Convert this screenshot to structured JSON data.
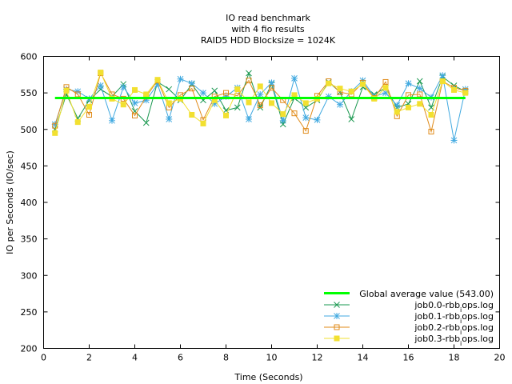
{
  "chart_data": {
    "type": "line",
    "title_lines": [
      "IO read benchmark",
      "with 4 fio results",
      "RAID5 HDD  Blocksize = 1024K"
    ],
    "xlabel": "Time (Seconds)",
    "ylabel": "IO per Seconds (IO/sec)",
    "xlim": [
      0,
      20
    ],
    "ylim": [
      200,
      600
    ],
    "xticks": [
      "0",
      "2",
      "4",
      "6",
      "8",
      "10",
      "12",
      "14",
      "16",
      "18",
      "20"
    ],
    "yticks": [
      "200",
      "250",
      "300",
      "350",
      "400",
      "450",
      "500",
      "550",
      "600"
    ],
    "grid": false,
    "legend_position": "bottom-right",
    "average_line": {
      "label": "Global average value (543.00)",
      "value": 543,
      "x": [
        0.5,
        18.5
      ],
      "color": "#00ff00"
    },
    "series": [
      {
        "name": "job0.0-rbb̧ops.log",
        "legend_label": "job0.0-rbb",
        "legend_sub": "i",
        "legend_tail": "ops.log",
        "color": "#1a9850",
        "marker": "x",
        "x": [
          0.5,
          1.0,
          1.5,
          2.0,
          2.5,
          3.0,
          3.5,
          4.0,
          4.5,
          5.0,
          5.5,
          6.0,
          6.5,
          7.0,
          7.5,
          8.0,
          8.5,
          9.0,
          9.5,
          10.0,
          10.5,
          11.0,
          11.5,
          12.0,
          12.5,
          13.0,
          13.5,
          14.0,
          14.5,
          15.0,
          15.5,
          16.0,
          16.5,
          17.0,
          17.5,
          18.0,
          18.5
        ],
        "y": [
          500,
          548,
          515,
          540,
          555,
          545,
          562,
          525,
          509,
          565,
          555,
          540,
          562,
          540,
          553,
          526,
          530,
          577,
          530,
          562,
          507,
          543,
          530,
          540,
          565,
          551,
          514,
          558,
          548,
          557,
          530,
          535,
          566,
          530,
          572,
          560,
          552
        ]
      },
      {
        "name": "job0.1-rbb̧ops.log",
        "legend_label": "job0.1-rbb",
        "legend_sub": "i",
        "legend_tail": "ops.log",
        "color": "#41a9e0",
        "marker": "asterisk",
        "x": [
          0.5,
          1.0,
          1.5,
          2.0,
          2.5,
          3.0,
          3.5,
          4.0,
          4.5,
          5.0,
          5.5,
          6.0,
          6.5,
          7.0,
          7.5,
          8.0,
          8.5,
          9.0,
          9.5,
          10.0,
          10.5,
          11.0,
          11.5,
          12.0,
          12.5,
          13.0,
          13.5,
          14.0,
          14.5,
          15.0,
          15.5,
          16.0,
          16.5,
          17.0,
          17.5,
          18.0,
          18.5
        ],
        "y": [
          507,
          555,
          552,
          542,
          560,
          512,
          558,
          536,
          540,
          562,
          514,
          569,
          563,
          550,
          535,
          545,
          557,
          514,
          548,
          564,
          512,
          570,
          516,
          513,
          545,
          534,
          552,
          567,
          545,
          550,
          533,
          563,
          556,
          544,
          574,
          485,
          555
        ]
      },
      {
        "name": "job0.2-rbb̧ops.log",
        "legend_label": "job0.2-rbb",
        "legend_sub": "i",
        "legend_tail": "ops.log",
        "color": "#e08b1a",
        "marker": "square",
        "x": [
          0.5,
          1.0,
          1.5,
          2.0,
          2.5,
          3.0,
          3.5,
          4.0,
          4.5,
          5.0,
          5.5,
          6.0,
          6.5,
          7.0,
          7.5,
          8.0,
          8.5,
          9.0,
          9.5,
          10.0,
          10.5,
          11.0,
          11.5,
          12.0,
          12.5,
          13.0,
          13.5,
          14.0,
          14.5,
          15.0,
          15.5,
          16.0,
          16.5,
          17.0,
          17.5,
          18.0,
          18.5
        ],
        "y": [
          505,
          558,
          548,
          520,
          577,
          548,
          542,
          519,
          545,
          567,
          530,
          547,
          556,
          513,
          545,
          550,
          546,
          567,
          533,
          557,
          540,
          522,
          498,
          546,
          566,
          551,
          548,
          564,
          543,
          565,
          518,
          547,
          548,
          497,
          566,
          557,
          553
        ]
      },
      {
        "name": "job0.3-rbb̧ops.log",
        "legend_label": "job0.3-rbb",
        "legend_sub": "i",
        "legend_tail": "ops.log",
        "color": "#f2e030",
        "marker": "filled-square",
        "x": [
          0.5,
          1.0,
          1.5,
          2.0,
          2.5,
          3.0,
          3.5,
          4.0,
          4.5,
          5.0,
          5.5,
          6.0,
          6.5,
          7.0,
          7.5,
          8.0,
          8.5,
          9.0,
          9.5,
          10.0,
          10.5,
          11.0,
          11.5,
          12.0,
          12.5,
          13.0,
          13.5,
          14.0,
          14.5,
          15.0,
          15.5,
          16.0,
          16.5,
          17.0,
          17.5,
          18.0,
          18.5
        ],
        "y": [
          495,
          553,
          510,
          531,
          578,
          542,
          534,
          554,
          548,
          568,
          536,
          542,
          520,
          508,
          540,
          519,
          555,
          537,
          559,
          536,
          521,
          547,
          536,
          542,
          563,
          556,
          552,
          562,
          542,
          557,
          524,
          530,
          535,
          520,
          566,
          554,
          550
        ]
      }
    ]
  }
}
